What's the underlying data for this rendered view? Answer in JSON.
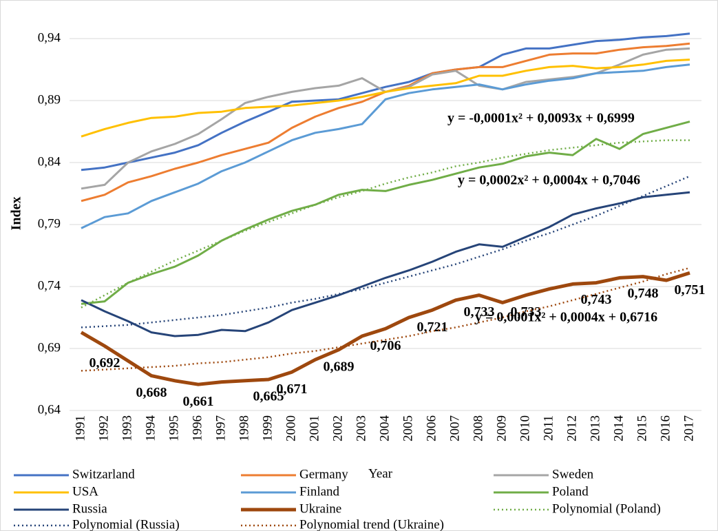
{
  "chart_data": {
    "type": "line",
    "y_label": "Index",
    "x_label": "Year",
    "categories": [
      "1991",
      "1992",
      "1993",
      "1994",
      "1995",
      "1996",
      "1997",
      "1998",
      "1999",
      "2000",
      "2001",
      "2002",
      "2003",
      "2004",
      "2005",
      "2006",
      "2007",
      "2008",
      "2009",
      "2010",
      "2011",
      "2012",
      "2013",
      "2014",
      "2015",
      "2016",
      "2017"
    ],
    "ylim": [
      0.64,
      0.96
    ],
    "yticks": [
      {
        "value": 0.64,
        "label": "0,64"
      },
      {
        "value": 0.69,
        "label": "0,69"
      },
      {
        "value": 0.74,
        "label": "0,74"
      },
      {
        "value": 0.79,
        "label": "0,79"
      },
      {
        "value": 0.84,
        "label": "0,84"
      },
      {
        "value": 0.89,
        "label": "0,89"
      },
      {
        "value": 0.94,
        "label": "0,94"
      }
    ],
    "grid": true,
    "legend": "bottom",
    "series": [
      {
        "name": "Switzarland",
        "color": "#4472c4",
        "line_style": "solid",
        "line_width": 3,
        "values": [
          0.834,
          0.836,
          0.84,
          0.844,
          0.848,
          0.854,
          0.864,
          0.873,
          0.881,
          0.889,
          0.89,
          0.891,
          0.896,
          0.901,
          0.905,
          0.912,
          0.915,
          0.917,
          0.927,
          0.932,
          0.932,
          0.935,
          0.938,
          0.939,
          0.941,
          0.942,
          0.944
        ]
      },
      {
        "name": "Germany",
        "color": "#ed7d31",
        "line_style": "solid",
        "line_width": 3,
        "values": [
          0.809,
          0.814,
          0.824,
          0.829,
          0.835,
          0.84,
          0.846,
          0.851,
          0.856,
          0.868,
          0.877,
          0.884,
          0.889,
          0.897,
          0.902,
          0.912,
          0.915,
          0.917,
          0.917,
          0.922,
          0.927,
          0.928,
          0.928,
          0.931,
          0.933,
          0.934,
          0.936
        ]
      },
      {
        "name": "Sweden",
        "color": "#a5a5a5",
        "line_style": "solid",
        "line_width": 3,
        "values": [
          0.819,
          0.822,
          0.84,
          0.849,
          0.855,
          0.863,
          0.875,
          0.888,
          0.893,
          0.897,
          0.9,
          0.902,
          0.908,
          0.897,
          0.901,
          0.911,
          0.914,
          0.902,
          0.899,
          0.905,
          0.907,
          0.909,
          0.912,
          0.919,
          0.927,
          0.931,
          0.932
        ]
      },
      {
        "name": "USA",
        "color": "#ffc000",
        "line_style": "solid",
        "line_width": 3,
        "values": [
          0.861,
          0.867,
          0.872,
          0.876,
          0.877,
          0.88,
          0.881,
          0.884,
          0.885,
          0.886,
          0.888,
          0.89,
          0.893,
          0.897,
          0.9,
          0.902,
          0.904,
          0.91,
          0.91,
          0.914,
          0.917,
          0.918,
          0.916,
          0.917,
          0.919,
          0.922,
          0.923
        ]
      },
      {
        "name": "Finland",
        "color": "#5b9bd5",
        "line_style": "solid",
        "line_width": 3,
        "values": [
          0.787,
          0.796,
          0.799,
          0.809,
          0.816,
          0.823,
          0.833,
          0.84,
          0.849,
          0.858,
          0.864,
          0.867,
          0.871,
          0.891,
          0.896,
          0.899,
          0.901,
          0.903,
          0.899,
          0.903,
          0.906,
          0.908,
          0.912,
          0.913,
          0.914,
          0.917,
          0.919
        ]
      },
      {
        "name": "Poland",
        "color": "#70ad47",
        "line_style": "solid",
        "line_width": 3,
        "values": [
          0.726,
          0.728,
          0.743,
          0.75,
          0.756,
          0.765,
          0.777,
          0.786,
          0.794,
          0.801,
          0.806,
          0.814,
          0.818,
          0.817,
          0.822,
          0.826,
          0.831,
          0.836,
          0.839,
          0.845,
          0.848,
          0.846,
          0.859,
          0.851,
          0.863,
          0.868,
          0.873
        ]
      },
      {
        "name": "Russia",
        "color": "#264478",
        "line_style": "solid",
        "line_width": 3,
        "values": [
          0.729,
          0.72,
          0.712,
          0.703,
          0.7,
          0.701,
          0.705,
          0.704,
          0.711,
          0.721,
          0.727,
          0.733,
          0.74,
          0.747,
          0.753,
          0.76,
          0.768,
          0.774,
          0.772,
          0.78,
          0.788,
          0.798,
          0.803,
          0.807,
          0.812,
          0.814,
          0.816
        ]
      },
      {
        "name": "Ukraine",
        "color": "#9e480e",
        "line_style": "solid",
        "line_width": 5,
        "values": [
          0.703,
          0.692,
          0.68,
          0.668,
          0.664,
          0.661,
          0.663,
          0.664,
          0.665,
          0.671,
          0.681,
          0.689,
          0.7,
          0.706,
          0.715,
          0.721,
          0.729,
          0.733,
          0.727,
          0.733,
          0.738,
          0.742,
          0.743,
          0.747,
          0.748,
          0.745,
          0.751
        ],
        "value_labels": [
          null,
          "0,692",
          null,
          "0,668",
          null,
          "0,661",
          null,
          null,
          "0,665",
          "0,671",
          null,
          "0,689",
          null,
          "0,706",
          null,
          "0,721",
          null,
          "0,733",
          null,
          "0,733",
          null,
          null,
          "0,743",
          null,
          "0,748",
          null,
          "0,751"
        ]
      },
      {
        "name": "Polynomial (Poland)",
        "color": "#70ad47",
        "line_style": "dotted",
        "line_width": 2.5,
        "values": [
          0.723,
          0.733,
          0.743,
          0.752,
          0.761,
          0.769,
          0.777,
          0.785,
          0.792,
          0.799,
          0.806,
          0.812,
          0.817,
          0.823,
          0.828,
          0.832,
          0.837,
          0.84,
          0.844,
          0.847,
          0.85,
          0.852,
          0.854,
          0.856,
          0.857,
          0.858,
          0.858
        ]
      },
      {
        "name": "Polynomial (Russia)",
        "color": "#264478",
        "line_style": "dotted",
        "line_width": 2.5,
        "values": [
          0.707,
          0.708,
          0.709,
          0.711,
          0.713,
          0.715,
          0.717,
          0.72,
          0.723,
          0.727,
          0.73,
          0.734,
          0.738,
          0.743,
          0.748,
          0.753,
          0.758,
          0.764,
          0.77,
          0.777,
          0.783,
          0.79,
          0.797,
          0.805,
          0.813,
          0.821,
          0.829
        ]
      },
      {
        "name": "Polynomial trend (Ukraine)",
        "color": "#9e480e",
        "line_style": "dotted",
        "line_width": 2.5,
        "values": [
          0.672,
          0.673,
          0.674,
          0.675,
          0.676,
          0.678,
          0.679,
          0.681,
          0.683,
          0.686,
          0.688,
          0.691,
          0.694,
          0.697,
          0.7,
          0.704,
          0.707,
          0.711,
          0.715,
          0.72,
          0.724,
          0.729,
          0.734,
          0.739,
          0.744,
          0.75,
          0.755
        ]
      }
    ],
    "annotations": [
      "y = -0,0001x² + 0,0093x + 0,6999",
      "y = 0,0002x² + 0,0004x + 0,7046",
      "y = 0,0001x² + 0,0004x + 0,6716"
    ]
  }
}
